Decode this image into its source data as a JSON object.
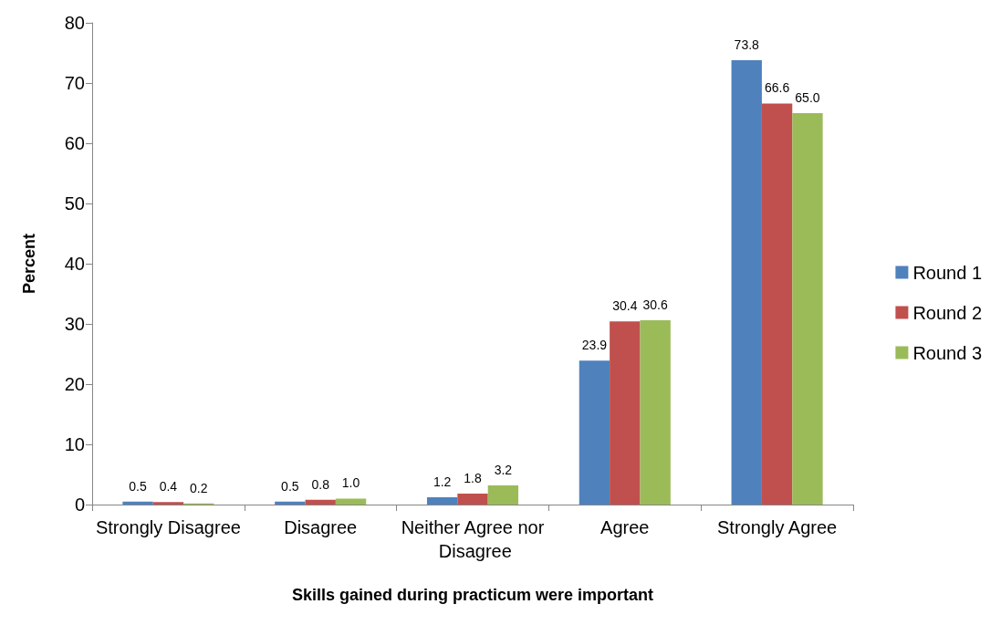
{
  "chart_data": {
    "type": "bar",
    "xlabel": "Skills gained during practicum were important",
    "ylabel": "Percent",
    "categories": [
      "Strongly Disagree",
      "Disagree",
      "Neither Agree nor Disagree",
      "Agree",
      "Strongly Agree"
    ],
    "series": [
      {
        "name": "Round 1",
        "color": "#4f81bd",
        "values": [
          0.5,
          0.5,
          1.2,
          23.9,
          73.8
        ],
        "value_labels": [
          "0.5",
          "0.5",
          "1.2",
          "23.9",
          "73.8"
        ]
      },
      {
        "name": "Round 2",
        "color": "#c0504d",
        "values": [
          0.4,
          0.8,
          1.8,
          30.4,
          66.6
        ],
        "value_labels": [
          "0.4",
          "0.8",
          "1.8",
          "30.4",
          "66.6"
        ]
      },
      {
        "name": "Round 3",
        "color": "#9bbb59",
        "values": [
          0.2,
          1.0,
          3.2,
          30.6,
          65.0
        ],
        "value_labels": [
          "0.2",
          "1.0",
          "3.2",
          "30.6",
          "65.0"
        ]
      }
    ],
    "ylim": [
      0,
      80
    ],
    "yticks": [
      0,
      10,
      20,
      30,
      40,
      50,
      60,
      70,
      80
    ],
    "grid": false,
    "legend": "right"
  }
}
